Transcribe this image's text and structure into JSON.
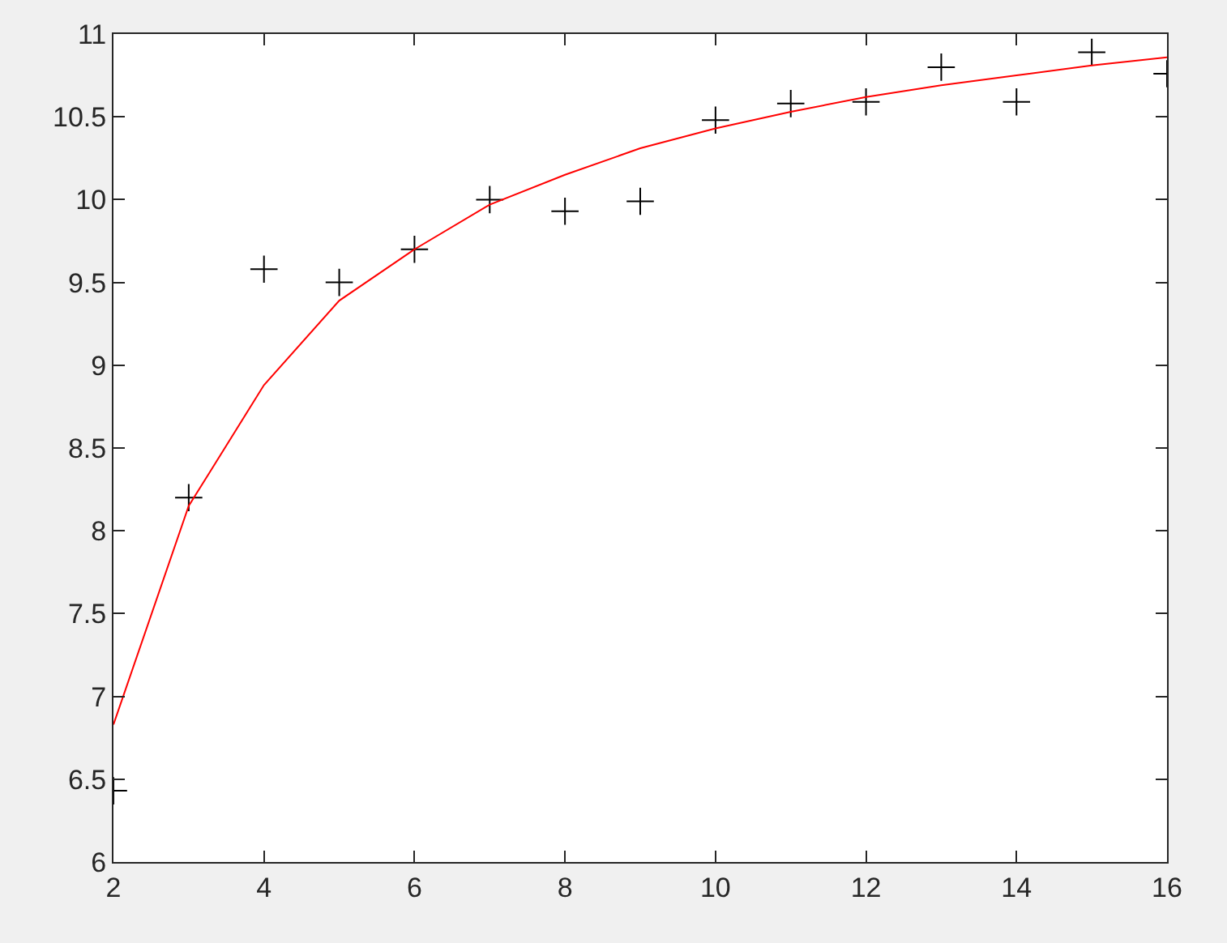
{
  "chart_data": {
    "type": "scatter",
    "x": [
      2,
      3,
      4,
      5,
      6,
      7,
      8,
      9,
      10,
      11,
      12,
      13,
      14,
      15,
      16
    ],
    "series": [
      {
        "color": "#000000",
        "marker": "cross",
        "values": [
          6.43,
          8.2,
          9.58,
          9.5,
          9.7,
          10.0,
          9.93,
          9.99,
          10.48,
          10.58,
          10.59,
          10.8,
          10.59,
          10.89,
          10.76
        ]
      },
      {
        "type": "line",
        "color": "#ff0000",
        "marker": "none",
        "line_style": "solid",
        "values": [
          6.83,
          8.15,
          8.88,
          9.39,
          9.7,
          9.97,
          10.15,
          10.31,
          10.43,
          10.53,
          10.62,
          10.69,
          10.75,
          10.81,
          10.86
        ]
      }
    ],
    "xlim": [
      2,
      16
    ],
    "xticks": [
      2,
      4,
      6,
      8,
      10,
      12,
      14,
      16
    ],
    "ylim": [
      6,
      11
    ],
    "yticks": [
      6,
      6.5,
      7,
      7.5,
      8,
      8.5,
      9,
      9.5,
      10,
      10.5,
      11
    ]
  }
}
